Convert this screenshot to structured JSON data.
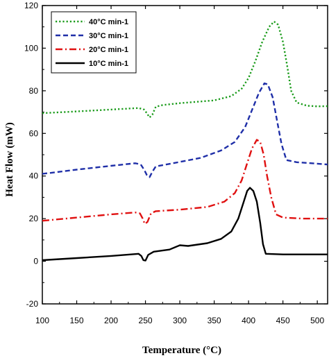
{
  "chart_data": {
    "type": "line",
    "xlabel": "Temperature (°C)",
    "ylabel": "Heat Flow (mW)",
    "xlim": [
      100,
      515
    ],
    "ylim": [
      -20,
      120
    ],
    "xticks": [
      100,
      150,
      200,
      250,
      300,
      350,
      400,
      450,
      500
    ],
    "yticks": [
      -20,
      0,
      20,
      40,
      60,
      80,
      100,
      120
    ],
    "grid": false,
    "legend": "top-left",
    "series": [
      {
        "name": "40°C min-1",
        "color": "#1a9b1a",
        "dash": "dotted",
        "points": [
          [
            100,
            69.5
          ],
          [
            150,
            70.3
          ],
          [
            200,
            71.2
          ],
          [
            240,
            71.9
          ],
          [
            248,
            71.2
          ],
          [
            252,
            69.5
          ],
          [
            256,
            67.5
          ],
          [
            260,
            68.8
          ],
          [
            265,
            72.5
          ],
          [
            275,
            73.3
          ],
          [
            300,
            74.2
          ],
          [
            350,
            75.5
          ],
          [
            375,
            77.5
          ],
          [
            390,
            81
          ],
          [
            400,
            86
          ],
          [
            410,
            94
          ],
          [
            420,
            103
          ],
          [
            430,
            110
          ],
          [
            437,
            112.5
          ],
          [
            443,
            111
          ],
          [
            450,
            103
          ],
          [
            456,
            92
          ],
          [
            462,
            80
          ],
          [
            470,
            74.5
          ],
          [
            485,
            73
          ],
          [
            500,
            72.7
          ],
          [
            515,
            72.8
          ]
        ]
      },
      {
        "name": "30°C min-1",
        "color": "#1f2fa8",
        "dash": "dashed",
        "points": [
          [
            100,
            41
          ],
          [
            150,
            43
          ],
          [
            200,
            44.8
          ],
          [
            235,
            46
          ],
          [
            243,
            45.5
          ],
          [
            248,
            43
          ],
          [
            252,
            40.5
          ],
          [
            256,
            39.5
          ],
          [
            260,
            42
          ],
          [
            265,
            44.5
          ],
          [
            290,
            46
          ],
          [
            330,
            48.5
          ],
          [
            360,
            52
          ],
          [
            380,
            56
          ],
          [
            395,
            63
          ],
          [
            405,
            71
          ],
          [
            415,
            79
          ],
          [
            423,
            83.5
          ],
          [
            428,
            83
          ],
          [
            435,
            77
          ],
          [
            442,
            65
          ],
          [
            448,
            55
          ],
          [
            455,
            47.5
          ],
          [
            470,
            46.5
          ],
          [
            500,
            45.8
          ],
          [
            515,
            45.4
          ]
        ]
      },
      {
        "name": "20°C min-1",
        "color": "#e01010",
        "dash": "dashdot",
        "points": [
          [
            100,
            19
          ],
          [
            150,
            20.5
          ],
          [
            200,
            22
          ],
          [
            235,
            22.9
          ],
          [
            242,
            22.5
          ],
          [
            246,
            20
          ],
          [
            249,
            17.5
          ],
          [
            253,
            18.5
          ],
          [
            258,
            22.5
          ],
          [
            265,
            23.5
          ],
          [
            300,
            24.2
          ],
          [
            340,
            25.5
          ],
          [
            365,
            28
          ],
          [
            380,
            32
          ],
          [
            390,
            38
          ],
          [
            398,
            46
          ],
          [
            405,
            53
          ],
          [
            412,
            57
          ],
          [
            417,
            56
          ],
          [
            422,
            50
          ],
          [
            427,
            40
          ],
          [
            433,
            30
          ],
          [
            440,
            22
          ],
          [
            450,
            20.5
          ],
          [
            480,
            20
          ],
          [
            515,
            20
          ]
        ]
      },
      {
        "name": "10°C min-1",
        "color": "#000000",
        "dash": "solid",
        "points": [
          [
            100,
            0.5
          ],
          [
            150,
            1.5
          ],
          [
            200,
            2.5
          ],
          [
            240,
            3.5
          ],
          [
            244,
            2.5
          ],
          [
            247,
            0.5
          ],
          [
            250,
            0.3
          ],
          [
            254,
            3
          ],
          [
            262,
            4.5
          ],
          [
            285,
            5.5
          ],
          [
            300,
            7.5
          ],
          [
            312,
            7.2
          ],
          [
            340,
            8.5
          ],
          [
            360,
            10.5
          ],
          [
            375,
            14
          ],
          [
            385,
            20
          ],
          [
            393,
            28
          ],
          [
            398,
            33
          ],
          [
            402,
            34.5
          ],
          [
            407,
            33
          ],
          [
            412,
            28
          ],
          [
            417,
            18
          ],
          [
            421,
            8
          ],
          [
            425,
            3.5
          ],
          [
            450,
            3.2
          ],
          [
            515,
            3.2
          ]
        ]
      }
    ]
  }
}
